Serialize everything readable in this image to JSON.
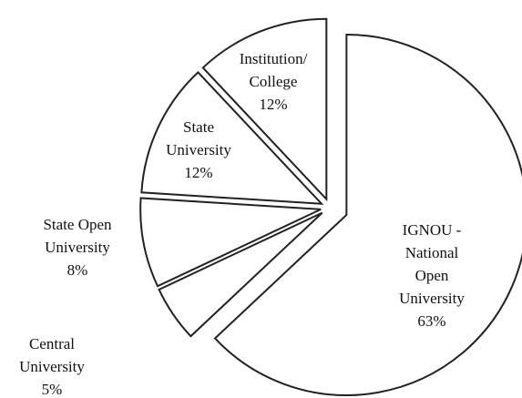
{
  "chart_data": {
    "type": "pie",
    "categories": [
      "IGNOU -\nNational Open\nUniversity",
      "Central\nUniversity",
      "State Open\nUniversity",
      "State\nUniversity",
      "Institution/\nCollege"
    ],
    "values": [
      63,
      5,
      8,
      12,
      12
    ],
    "value_labels": [
      "63%",
      "5%",
      "8%",
      "12%",
      "12%"
    ],
    "color": "#ffffff"
  }
}
